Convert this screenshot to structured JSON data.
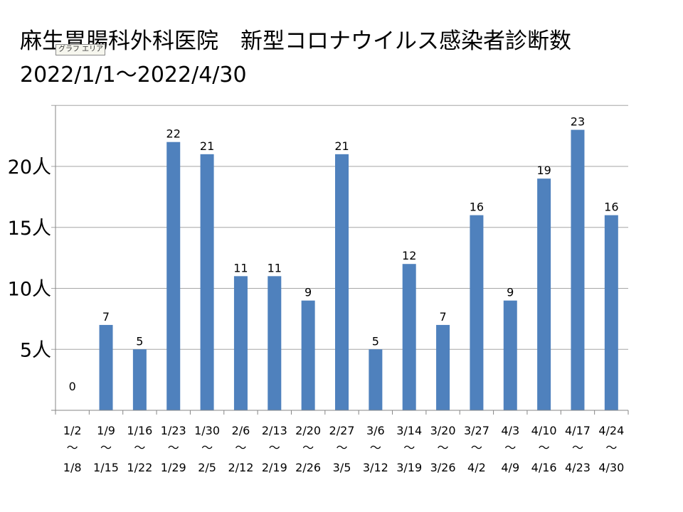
{
  "title_line1": "麻生胃腸科外科医院　新型コロナウイルス感染者診断数",
  "title_line2": "2022/1/1～2022/4/30",
  "area_tag": "グラフ エリア",
  "chart_data": {
    "type": "bar",
    "categories": [
      {
        "start": "1/2",
        "sep": "～",
        "end": "1/8"
      },
      {
        "start": "1/9",
        "sep": "～",
        "end": "1/15"
      },
      {
        "start": "1/16",
        "sep": "～",
        "end": "1/22"
      },
      {
        "start": "1/23",
        "sep": "～",
        "end": "1/29"
      },
      {
        "start": "1/30",
        "sep": "～",
        "end": "2/5"
      },
      {
        "start": "2/6",
        "sep": "～",
        "end": "2/12"
      },
      {
        "start": "2/13",
        "sep": "～",
        "end": "2/19"
      },
      {
        "start": "2/20",
        "sep": "～",
        "end": "2/26"
      },
      {
        "start": "2/27",
        "sep": "～",
        "end": "3/5"
      },
      {
        "start": "3/6",
        "sep": "～",
        "end": "3/12"
      },
      {
        "start": "3/14",
        "sep": "～",
        "end": "3/19"
      },
      {
        "start": "3/20",
        "sep": "～",
        "end": "3/26"
      },
      {
        "start": "3/27",
        "sep": "～",
        "end": "4/2"
      },
      {
        "start": "4/3",
        "sep": "～",
        "end": "4/9"
      },
      {
        "start": "4/10",
        "sep": "～",
        "end": "4/16"
      },
      {
        "start": "4/17",
        "sep": "～",
        "end": "4/23"
      },
      {
        "start": "4/24",
        "sep": "～",
        "end": "4/30"
      }
    ],
    "values": [
      0,
      7,
      5,
      22,
      21,
      11,
      11,
      9,
      21,
      5,
      12,
      7,
      16,
      9,
      19,
      23,
      16
    ],
    "y_ticks": [
      {
        "value": 5,
        "label": "5人"
      },
      {
        "value": 10,
        "label": "10人"
      },
      {
        "value": 15,
        "label": "15人"
      },
      {
        "value": 20,
        "label": "20人"
      }
    ],
    "ylim": [
      0,
      25
    ],
    "grid": true,
    "bar_color": "#4f81bd",
    "grid_color": "#a6a6a6"
  }
}
